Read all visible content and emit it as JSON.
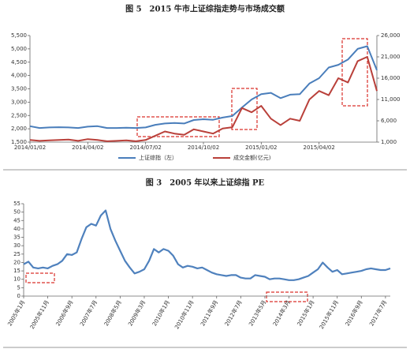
{
  "chart_data": [
    {
      "type": "line",
      "title": "图 5　2015 牛市上证综指走势与市场成交额",
      "categories": [
        "2014/01/02",
        null,
        null,
        null,
        null,
        null,
        "2014/04/02",
        null,
        null,
        null,
        null,
        null,
        "2014/07/02",
        null,
        null,
        null,
        null,
        null,
        "2014/10/02",
        null,
        null,
        null,
        null,
        null,
        "2015/01/02",
        null,
        null,
        null,
        null,
        null,
        "2015/04/02",
        null,
        null,
        null,
        null,
        null,
        null
      ],
      "series": [
        {
          "name": "上证综指（左）",
          "color": "#4a7ebb",
          "values": [
            2100,
            2030,
            2050,
            2060,
            2050,
            2030,
            2080,
            2100,
            2030,
            2030,
            2040,
            2030,
            2050,
            2150,
            2200,
            2220,
            2200,
            2330,
            2360,
            2340,
            2420,
            2480,
            2800,
            3100,
            3300,
            3350,
            3150,
            3280,
            3300,
            3700,
            3900,
            4300,
            4400,
            4600,
            5000,
            5100,
            4200
          ]
        },
        {
          "name": "成交金额(亿元)",
          "color": "#b9403a",
          "axis": "y2",
          "values": [
            1500,
            1300,
            1400,
            1500,
            1600,
            1300,
            1700,
            1500,
            1200,
            1300,
            1400,
            1200,
            1500,
            2500,
            3500,
            3000,
            2700,
            4000,
            3500,
            3000,
            4200,
            4500,
            9000,
            8000,
            9500,
            6500,
            5000,
            6500,
            6000,
            11000,
            13000,
            12000,
            16000,
            15000,
            20000,
            21000,
            13000
          ]
        }
      ],
      "ylim": [
        1500,
        5500
      ],
      "yticks": [
        {
          "value": 1500,
          "label": "1,500"
        },
        {
          "value": 2000,
          "label": "2,000"
        },
        {
          "value": 2500,
          "label": "2,500"
        },
        {
          "value": 3000,
          "label": "3,000"
        },
        {
          "value": 3500,
          "label": "3,500"
        },
        {
          "value": 4000,
          "label": "4,000"
        },
        {
          "value": 4500,
          "label": "4,500"
        },
        {
          "value": 5000,
          "label": "5,000"
        },
        {
          "value": 5500,
          "label": "5,500"
        }
      ],
      "y2lim": [
        1000,
        26000
      ],
      "y2ticks": [
        {
          "value": 1000,
          "label": "1,000"
        },
        {
          "value": 6000,
          "label": "6,000"
        },
        {
          "value": 11000,
          "label": "11,000"
        },
        {
          "value": 16000,
          "label": "16,000"
        },
        {
          "value": 21000,
          "label": "21,000"
        },
        {
          "value": 26000,
          "label": "26,000"
        }
      ],
      "legend": "bottom"
    },
    {
      "type": "line",
      "title": "图 3　2005 年以来上证综指 PE",
      "categories": [
        "2005年1月",
        null,
        null,
        null,
        null,
        "2005年11月",
        null,
        null,
        null,
        null,
        "2006年9月",
        null,
        null,
        null,
        null,
        "2007年7月",
        null,
        null,
        null,
        null,
        "2008年5月",
        null,
        null,
        null,
        null,
        "2009年3月",
        null,
        null,
        null,
        null,
        "2010年1月",
        null,
        null,
        null,
        null,
        "2010年11月",
        null,
        null,
        null,
        null,
        "2011年9月",
        null,
        null,
        null,
        null,
        "2012年7月",
        null,
        null,
        null,
        null,
        "2013年5月",
        null,
        null,
        null,
        null,
        "2014年3月",
        null,
        null,
        null,
        null,
        "2015年1月",
        null,
        null,
        null,
        null,
        "2015年11月",
        null,
        null,
        null,
        null,
        "2016年9月",
        null,
        null,
        null,
        null,
        "2017年7月",
        null
      ],
      "series": [
        {
          "color": "#4f81bd",
          "values": [
            19,
            20.5,
            17,
            16.5,
            17,
            16.5,
            18,
            19,
            21,
            25,
            24.5,
            26,
            34,
            41,
            43,
            42,
            48,
            51,
            40,
            33,
            27,
            21,
            17,
            13.5,
            14.5,
            16,
            21,
            28,
            26,
            28,
            27,
            24,
            19,
            17,
            18,
            17.5,
            16.5,
            17,
            15.5,
            14,
            13,
            12.5,
            12,
            12.5,
            12.5,
            11,
            10.5,
            10.5,
            12.5,
            12,
            11.5,
            10,
            10.5,
            10.5,
            10,
            9.5,
            9.5,
            10,
            11,
            12,
            14,
            16,
            20,
            17,
            14.5,
            15.5,
            13,
            13.5,
            14,
            14.5,
            15,
            16,
            16.5,
            16,
            15.5,
            15.5,
            16.5
          ]
        }
      ],
      "ylim": [
        0,
        55
      ],
      "yticks": [
        0,
        5,
        10,
        15,
        20,
        25,
        30,
        35,
        40,
        45,
        50,
        55
      ]
    }
  ]
}
